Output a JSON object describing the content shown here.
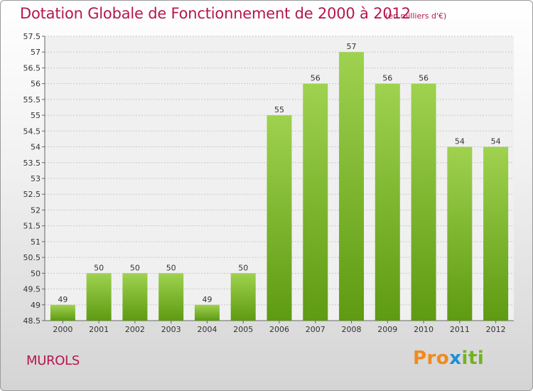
{
  "header": {
    "title": "Dotation Globale de Fonctionnement de 2000 à 2012",
    "subtitle": "(en milliers d'€)"
  },
  "footer": {
    "town": "MUROLS",
    "logo_text": [
      "Pro",
      "x",
      "iti"
    ]
  },
  "colors": {
    "title": "#b5164f",
    "bar_light": "#9fd24f",
    "bar_dark": "#5e9a12",
    "grid": "#c8c8c8"
  },
  "chart_data": {
    "type": "bar",
    "title": "Dotation Globale de Fonctionnement de 2000 à 2012",
    "subtitle": "(en milliers d'€)",
    "xlabel": "",
    "ylabel": "",
    "categories": [
      "2000",
      "2001",
      "2002",
      "2003",
      "2004",
      "2005",
      "2006",
      "2007",
      "2008",
      "2009",
      "2010",
      "2011",
      "2012"
    ],
    "values": [
      49,
      50,
      50,
      50,
      49,
      50,
      55,
      56,
      57,
      56,
      56,
      54,
      54
    ],
    "ylim": [
      48.5,
      57.5
    ],
    "ytick_step": 0.5,
    "grid": true,
    "legend": "none"
  }
}
